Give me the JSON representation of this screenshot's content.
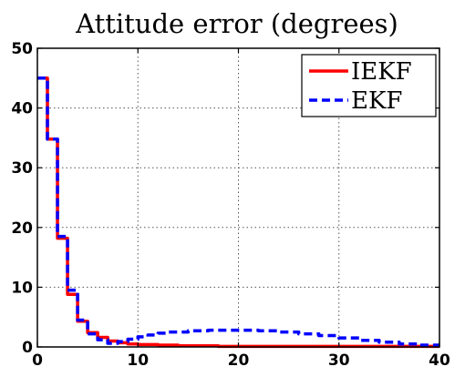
{
  "chart_data": {
    "type": "line",
    "title": "Attitude error (degrees)",
    "xlabel": "",
    "ylabel": "",
    "xlim": [
      0,
      40
    ],
    "ylim": [
      0,
      50
    ],
    "x_ticks": [
      0,
      10,
      20,
      30,
      40
    ],
    "y_ticks": [
      0,
      10,
      20,
      30,
      40,
      50
    ],
    "grid": true,
    "legend_position": "top-right",
    "series": [
      {
        "name": "IEKF",
        "color": "#ff0000",
        "style": "solid",
        "points": [
          [
            0,
            45
          ],
          [
            1,
            45
          ],
          [
            1,
            34.8
          ],
          [
            2,
            34.8
          ],
          [
            2,
            18.2
          ],
          [
            3,
            18.2
          ],
          [
            3,
            8.8
          ],
          [
            4,
            8.8
          ],
          [
            4,
            4.3
          ],
          [
            5,
            4.3
          ],
          [
            5,
            2.4
          ],
          [
            6,
            2.4
          ],
          [
            6,
            1.6
          ],
          [
            7,
            1.6
          ],
          [
            7,
            1.0
          ],
          [
            8,
            1.0
          ],
          [
            8,
            0.7
          ],
          [
            9,
            0.7
          ],
          [
            9,
            0.5
          ],
          [
            10,
            0.5
          ],
          [
            10,
            0.4
          ],
          [
            12,
            0.4
          ],
          [
            12,
            0.3
          ],
          [
            14,
            0.3
          ],
          [
            14,
            0.2
          ],
          [
            18,
            0.2
          ],
          [
            18,
            0.1
          ],
          [
            40,
            0.1
          ]
        ]
      },
      {
        "name": "EKF",
        "color": "#0000ff",
        "style": "dashed",
        "points": [
          [
            0,
            45
          ],
          [
            1,
            45
          ],
          [
            1,
            34.8
          ],
          [
            2,
            34.8
          ],
          [
            2,
            18.5
          ],
          [
            3,
            18.5
          ],
          [
            3,
            9.5
          ],
          [
            4,
            9.5
          ],
          [
            4,
            4.5
          ],
          [
            5,
            4.5
          ],
          [
            5,
            2.2
          ],
          [
            6,
            2.2
          ],
          [
            6,
            1.2
          ],
          [
            7,
            1.2
          ],
          [
            7,
            0.6
          ],
          [
            8,
            0.6
          ],
          [
            8,
            0.9
          ],
          [
            9,
            0.9
          ],
          [
            9,
            1.3
          ],
          [
            10,
            1.3
          ],
          [
            10,
            1.7
          ],
          [
            11,
            1.7
          ],
          [
            11,
            2.0
          ],
          [
            12,
            2.0
          ],
          [
            12,
            2.3
          ],
          [
            13,
            2.3
          ],
          [
            13,
            2.5
          ],
          [
            15,
            2.5
          ],
          [
            15,
            2.7
          ],
          [
            17,
            2.7
          ],
          [
            17,
            2.8
          ],
          [
            22,
            2.8
          ],
          [
            22,
            2.7
          ],
          [
            24,
            2.7
          ],
          [
            24,
            2.5
          ],
          [
            26,
            2.5
          ],
          [
            26,
            2.2
          ],
          [
            28,
            2.2
          ],
          [
            28,
            1.9
          ],
          [
            30,
            1.9
          ],
          [
            30,
            1.5
          ],
          [
            32,
            1.5
          ],
          [
            32,
            1.1
          ],
          [
            34,
            1.1
          ],
          [
            34,
            0.8
          ],
          [
            36,
            0.8
          ],
          [
            36,
            0.5
          ],
          [
            38,
            0.5
          ],
          [
            38,
            0.3
          ],
          [
            40,
            0.3
          ]
        ]
      }
    ]
  }
}
